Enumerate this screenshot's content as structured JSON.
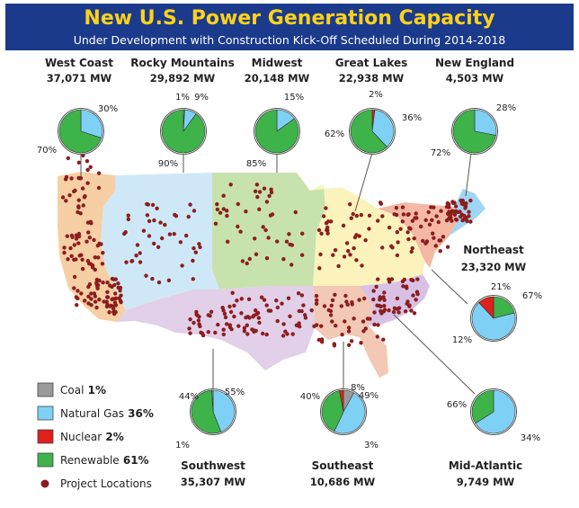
{
  "header": {
    "title": "New U.S. Power Generation Capacity",
    "subtitle": "Under Development with Construction Kick-Off Scheduled During 2014-2018"
  },
  "colors": {
    "header_bg": "#1b3a8c",
    "title": "#ffd21a",
    "coal": "#9a9a9a",
    "natural_gas": "#7fd0f5",
    "nuclear": "#e0201c",
    "renewable": "#3db34a",
    "project_dot": "#8b1e1e"
  },
  "regions": [
    {
      "id": "west-coast",
      "name": "West Coast",
      "capacity": "37,071 MW",
      "slices": [
        {
          "fuel": "natural_gas",
          "pct": 30,
          "label": "30%"
        },
        {
          "fuel": "renewable",
          "pct": 70,
          "label": "70%"
        }
      ]
    },
    {
      "id": "rocky-mountains",
      "name": "Rocky Mountains",
      "capacity": "29,892 MW",
      "slices": [
        {
          "fuel": "coal",
          "pct": 1,
          "label": "1%"
        },
        {
          "fuel": "natural_gas",
          "pct": 9,
          "label": "9%"
        },
        {
          "fuel": "renewable",
          "pct": 90,
          "label": "90%"
        }
      ]
    },
    {
      "id": "midwest",
      "name": "Midwest",
      "capacity": "20,148 MW",
      "slices": [
        {
          "fuel": "natural_gas",
          "pct": 15,
          "label": "15%"
        },
        {
          "fuel": "renewable",
          "pct": 85,
          "label": "85%"
        }
      ]
    },
    {
      "id": "great-lakes",
      "name": "Great Lakes",
      "capacity": "22,938 MW",
      "slices": [
        {
          "fuel": "nuclear",
          "pct": 2,
          "label": "2%"
        },
        {
          "fuel": "natural_gas",
          "pct": 36,
          "label": "36%"
        },
        {
          "fuel": "renewable",
          "pct": 62,
          "label": "62%"
        }
      ]
    },
    {
      "id": "new-england",
      "name": "New England",
      "capacity": "4,503 MW",
      "slices": [
        {
          "fuel": "natural_gas",
          "pct": 28,
          "label": "28%"
        },
        {
          "fuel": "renewable",
          "pct": 72,
          "label": "72%"
        }
      ]
    },
    {
      "id": "northeast",
      "name": "Northeast",
      "capacity": "23,320 MW",
      "slices": [
        {
          "fuel": "renewable",
          "pct": 21,
          "label": "21%"
        },
        {
          "fuel": "natural_gas",
          "pct": 67,
          "label": "67%"
        },
        {
          "fuel": "nuclear",
          "pct": 12,
          "label": "12%"
        }
      ]
    },
    {
      "id": "southwest",
      "name": "Southwest",
      "capacity": "35,307 MW",
      "slices": [
        {
          "fuel": "natural_gas",
          "pct": 44,
          "label": "44%"
        },
        {
          "fuel": "renewable",
          "pct": 55,
          "label": "55%"
        },
        {
          "fuel": "coal",
          "pct": 1,
          "label": "1%"
        }
      ]
    },
    {
      "id": "southeast",
      "name": "Southeast",
      "capacity": "10,686 MW",
      "slices": [
        {
          "fuel": "coal",
          "pct": 8,
          "label": "8%"
        },
        {
          "fuel": "natural_gas",
          "pct": 49,
          "label": "49%"
        },
        {
          "fuel": "renewable",
          "pct": 40,
          "label": "40%"
        },
        {
          "fuel": "nuclear",
          "pct": 3,
          "label": "3%"
        }
      ]
    },
    {
      "id": "mid-atlantic",
      "name": "Mid-Atlantic",
      "capacity": "9,749 MW",
      "slices": [
        {
          "fuel": "natural_gas",
          "pct": 66,
          "label": "66%"
        },
        {
          "fuel": "renewable",
          "pct": 34,
          "label": "34%"
        }
      ]
    }
  ],
  "legend": [
    {
      "id": "coal",
      "label": "Coal",
      "value": "1%"
    },
    {
      "id": "natural_gas",
      "label": "Natural Gas",
      "value": "36%"
    },
    {
      "id": "nuclear",
      "label": "Nuclear",
      "value": "2%"
    },
    {
      "id": "renewable",
      "label": "Renewable",
      "value": "61%"
    },
    {
      "id": "project_dot",
      "label": "Project Locations",
      "value": ""
    }
  ]
}
